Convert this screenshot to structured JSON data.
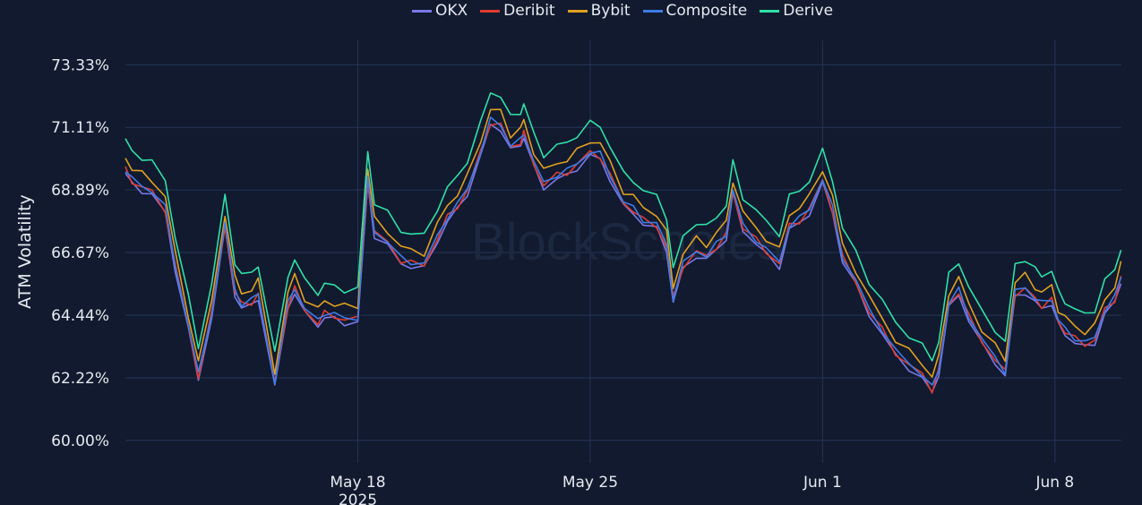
{
  "legend": {
    "items": [
      {
        "label": "OKX",
        "color": "#7b78e8"
      },
      {
        "label": "Deribit",
        "color": "#e03b2e"
      },
      {
        "label": "Bybit",
        "color": "#e0a020"
      },
      {
        "label": "Composite",
        "color": "#3f7be8"
      },
      {
        "label": "Derive",
        "color": "#2fe0a8"
      }
    ]
  },
  "watermark": "BlockScholes",
  "chart_data": {
    "type": "line",
    "ylabel": "ATM Volatility",
    "xlabel": "",
    "y_ticks": [
      "73.33%",
      "71.11%",
      "68.89%",
      "66.67%",
      "64.44%",
      "62.22%",
      "60.00%"
    ],
    "y_tick_values": [
      73.33,
      71.11,
      68.89,
      66.67,
      64.44,
      62.22,
      60.0
    ],
    "ylim": [
      60.0,
      73.33
    ],
    "x_ticks": [
      {
        "label": "May 18",
        "sub": "2025",
        "day": 7
      },
      {
        "label": "May 25",
        "sub": "",
        "day": 14
      },
      {
        "label": "Jun 1",
        "sub": "",
        "day": 21
      },
      {
        "label": "Jun 8",
        "sub": "",
        "day": 28
      }
    ],
    "xlim_days": [
      0,
      30
    ],
    "grid": true,
    "legend_position": "top",
    "base_series": {
      "x": [
        0,
        0.2,
        0.5,
        0.8,
        1.2,
        1.5,
        1.9,
        2.2,
        2.6,
        3.0,
        3.3,
        3.5,
        3.8,
        4.0,
        4.5,
        4.9,
        5.1,
        5.4,
        5.8,
        6.0,
        6.3,
        6.6,
        7.0,
        7.3,
        7.5,
        7.9,
        8.3,
        8.6,
        9.0,
        9.4,
        9.7,
        10.0,
        10.3,
        10.7,
        11.0,
        11.3,
        11.6,
        11.9,
        12.0,
        12.3,
        12.6,
        13.0,
        13.3,
        13.6,
        14.0,
        14.3,
        14.6,
        15.0,
        15.3,
        15.6,
        16.0,
        16.3,
        16.5,
        16.8,
        17.2,
        17.5,
        17.8,
        18.1,
        18.3,
        18.6,
        19.0,
        19.3,
        19.7,
        20.0,
        20.3,
        20.6,
        21.0,
        21.3,
        21.6,
        22.0,
        22.4,
        22.8,
        23.2,
        23.6,
        24.0,
        24.3,
        24.5,
        24.8,
        25.1,
        25.4,
        25.8,
        26.2,
        26.5,
        26.8,
        27.1,
        27.4,
        27.6,
        27.9,
        28.1,
        28.3,
        28.6,
        28.9,
        29.2,
        29.5,
        29.8,
        29.99
      ],
      "y": [
        69.6,
        69.2,
        69.0,
        68.8,
        68.2,
        66.2,
        64.0,
        62.3,
        64.5,
        67.6,
        65.3,
        64.8,
        64.9,
        65.2,
        62.0,
        64.8,
        65.4,
        64.6,
        64.2,
        64.5,
        64.4,
        64.3,
        64.3,
        69.2,
        67.4,
        67.0,
        66.4,
        66.3,
        66.2,
        67.2,
        67.9,
        68.3,
        68.9,
        70.2,
        71.3,
        71.2,
        70.4,
        70.6,
        70.9,
        69.8,
        69.1,
        69.4,
        69.5,
        69.8,
        70.2,
        70.1,
        69.4,
        68.4,
        68.2,
        67.8,
        67.6,
        66.9,
        65.0,
        66.2,
        66.7,
        66.5,
        66.9,
        67.3,
        68.8,
        67.6,
        67.1,
        66.7,
        66.3,
        67.6,
        67.8,
        68.2,
        69.2,
        68.2,
        66.5,
        65.6,
        64.6,
        63.9,
        63.1,
        62.7,
        62.3,
        61.8,
        62.5,
        64.8,
        65.3,
        64.4,
        63.5,
        62.9,
        62.4,
        65.2,
        65.4,
        65.0,
        64.8,
        65.0,
        64.2,
        63.9,
        63.6,
        63.4,
        63.6,
        64.6,
        65.0,
        65.8
      ]
    },
    "series": [
      {
        "name": "OKX",
        "offset": -0.12,
        "color": "#7b78e8"
      },
      {
        "name": "Deribit",
        "offset": 0.0,
        "color": "#e03b2e"
      },
      {
        "name": "Bybit",
        "offset": 0.45,
        "color": "#e0a020"
      },
      {
        "name": "Composite",
        "offset": 0.05,
        "color": "#3f7be8"
      },
      {
        "name": "Derive",
        "offset": 1.05,
        "color": "#2fe0a8"
      }
    ]
  }
}
